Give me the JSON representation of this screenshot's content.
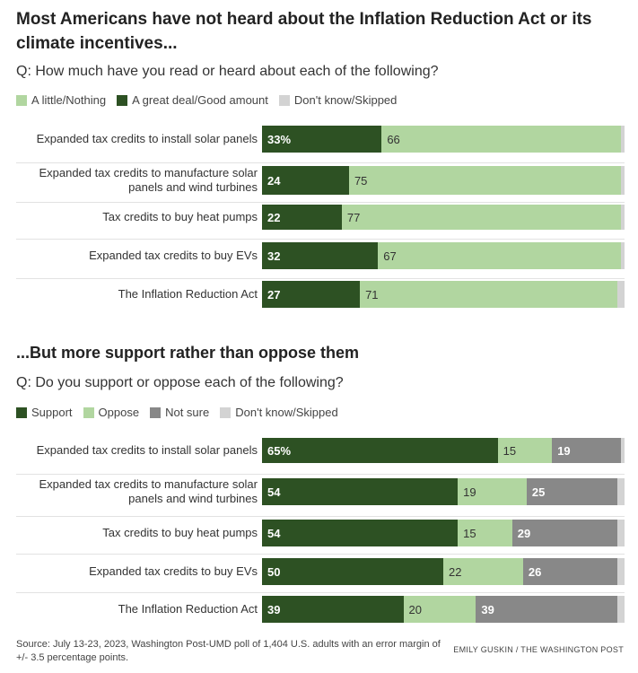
{
  "colors": {
    "support": "#2d5123",
    "light": "#b1d6a0",
    "notsure": "#888888",
    "dk": "#d3d3d3",
    "white_text": "#ffffff",
    "dark_text": "#333333"
  },
  "chart_data": [
    {
      "type": "bar",
      "orientation": "horizontal-stacked",
      "title": "Most Americans have not heard about the Inflation Reduction Act or its climate incentives...",
      "question": "Q: How much have you read or heard about each of the following?",
      "xlim": [
        0,
        100
      ],
      "legend": [
        {
          "name": "A little/Nothing",
          "color": "#b1d6a0"
        },
        {
          "name": "A great deal/Good amount",
          "color": "#2d5123"
        },
        {
          "name": "Don't know/Skipped",
          "color": "#d3d3d3"
        }
      ],
      "categories": [
        "Expanded tax credits to install solar panels",
        "Expanded tax credits to manufacture solar panels and wind turbines",
        "Tax credits to buy heat pumps",
        "Expanded tax credits to buy EVs",
        "The Inflation Reduction Act"
      ],
      "category_lines": [
        [
          "Expanded tax credits to install solar panels"
        ],
        [
          "Expanded tax credits to manufacture solar",
          "panels and wind turbines"
        ],
        [
          "Tax credits to buy heat pumps"
        ],
        [
          "Expanded tax credits to buy EVs"
        ],
        [
          "The Inflation Reduction Act"
        ]
      ],
      "series": [
        {
          "name": "A great deal/Good amount",
          "color": "#2d5123",
          "text_color": "#ffffff",
          "values": [
            33,
            24,
            22,
            32,
            27
          ],
          "labels": [
            "33%",
            "24",
            "22",
            "32",
            "27"
          ]
        },
        {
          "name": "A little/Nothing",
          "color": "#b1d6a0",
          "text_color": "#333333",
          "values": [
            66,
            75,
            77,
            67,
            71
          ],
          "labels": [
            "66",
            "75",
            "77",
            "67",
            "71"
          ]
        },
        {
          "name": "Don't know/Skipped",
          "color": "#d3d3d3",
          "text_color": "#333333",
          "values": [
            1,
            1,
            1,
            1,
            2
          ],
          "labels": [
            "",
            "",
            "",
            "",
            ""
          ]
        }
      ]
    },
    {
      "type": "bar",
      "orientation": "horizontal-stacked",
      "title": "...But more support rather than oppose them",
      "question": "Q: Do you support or oppose each of the following?",
      "xlim": [
        0,
        100
      ],
      "legend": [
        {
          "name": "Support",
          "color": "#2d5123"
        },
        {
          "name": "Oppose",
          "color": "#b1d6a0"
        },
        {
          "name": "Not sure",
          "color": "#888888"
        },
        {
          "name": "Don't know/Skipped",
          "color": "#d3d3d3"
        }
      ],
      "categories": [
        "Expanded tax credits to install solar panels",
        "Expanded tax credits to manufacture solar panels and wind turbines",
        "Tax credits to buy heat pumps",
        "Expanded tax credits to buy EVs",
        "The Inflation Reduction Act"
      ],
      "category_lines": [
        [
          "Expanded tax credits to install solar panels"
        ],
        [
          "Expanded tax credits to manufacture solar",
          "panels and wind turbines"
        ],
        [
          "Tax credits to buy heat pumps"
        ],
        [
          "Expanded tax credits to buy EVs"
        ],
        [
          "The Inflation Reduction Act"
        ]
      ],
      "series": [
        {
          "name": "Support",
          "color": "#2d5123",
          "text_color": "#ffffff",
          "values": [
            65,
            54,
            54,
            50,
            39
          ],
          "labels": [
            "65%",
            "54",
            "54",
            "50",
            "39"
          ]
        },
        {
          "name": "Oppose",
          "color": "#b1d6a0",
          "text_color": "#333333",
          "values": [
            15,
            19,
            15,
            22,
            20
          ],
          "labels": [
            "15",
            "19",
            "15",
            "22",
            "20"
          ]
        },
        {
          "name": "Not sure",
          "color": "#888888",
          "text_color": "#ffffff",
          "values": [
            19,
            25,
            29,
            26,
            39
          ],
          "labels": [
            "19",
            "25",
            "29",
            "26",
            "39"
          ]
        },
        {
          "name": "Don't know/Skipped",
          "color": "#d3d3d3",
          "text_color": "#333333",
          "values": [
            1,
            2,
            2,
            2,
            2
          ],
          "labels": [
            "",
            "",
            "",
            "",
            ""
          ]
        }
      ]
    }
  ],
  "footer": {
    "source": "Source: July 13-23, 2023, Washington Post-UMD poll of 1,404 U.S. adults with an error margin of +/- 3.5 percentage points.",
    "credit": "EMILY GUSKIN / THE WASHINGTON POST"
  }
}
